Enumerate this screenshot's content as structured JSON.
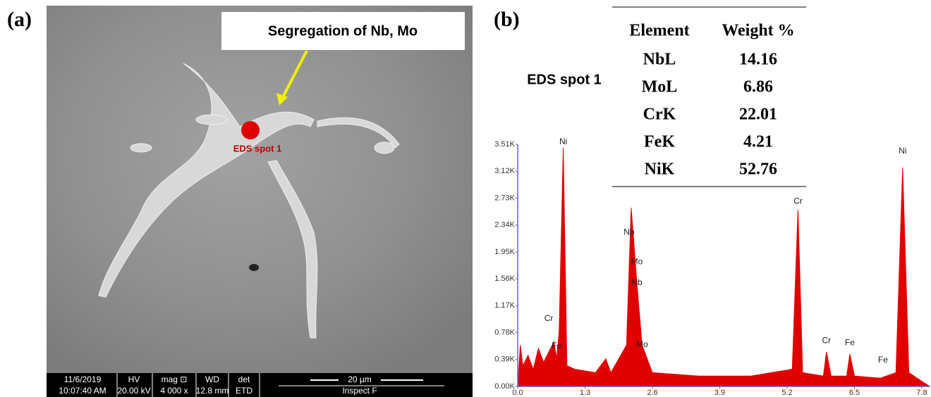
{
  "panel_a": {
    "label": "(a)",
    "annotation": "Segregation of Nb, Mo",
    "spot_label": "EDS spot 1",
    "info_bar": {
      "row1": [
        "11/6/2019",
        "HV",
        "mag ⊡",
        "WD",
        "det",
        "20 µm"
      ],
      "row2": [
        "10:07:40 AM",
        "20.00 kV",
        "4 000 x",
        "12.8 mm",
        "ETD",
        "Inspect F"
      ]
    }
  },
  "panel_b": {
    "label": "(b)",
    "spot_title": "EDS spot 1",
    "table": {
      "headers": [
        "Element",
        "Weight %"
      ],
      "rows": [
        [
          "NbL",
          14.16
        ],
        [
          "MoL",
          6.86
        ],
        [
          "CrK",
          22.01
        ],
        [
          "FeK",
          4.21
        ],
        [
          "NiK",
          52.76
        ]
      ]
    }
  },
  "chart_data": {
    "type": "area",
    "color": "#e00000",
    "x": [
      0.0,
      0.05,
      0.1,
      0.2,
      0.3,
      0.4,
      0.5,
      0.6,
      0.7,
      0.75,
      0.8,
      0.88,
      0.95,
      1.1,
      1.5,
      1.7,
      1.8,
      2.1,
      2.19,
      2.25,
      2.3,
      2.4,
      2.6,
      3.5,
      4.5,
      5.3,
      5.41,
      5.5,
      5.9,
      5.96,
      6.05,
      6.35,
      6.41,
      6.5,
      7.0,
      7.3,
      7.43,
      7.55,
      7.95
    ],
    "values": [
      0,
      600,
      300,
      450,
      250,
      550,
      350,
      500,
      650,
      400,
      800,
      3460,
      300,
      250,
      200,
      400,
      200,
      600,
      2590,
      2000,
      1500,
      600,
      200,
      150,
      150,
      250,
      2560,
      200,
      150,
      500,
      150,
      150,
      470,
      150,
      120,
      200,
      3170,
      200,
      0
    ],
    "xlim": [
      0,
      7.95
    ],
    "ylim": [
      0,
      3510
    ],
    "xticks": [
      {
        "value": 0,
        "label": "0.0"
      },
      1.3,
      2.6,
      3.9,
      5.2,
      6.5,
      7.8
    ],
    "yticks": [
      {
        "value": 0,
        "label": "0.00K"
      },
      {
        "value": 390,
        "label": "0.39K"
      },
      {
        "value": 780,
        "label": "0.78K"
      },
      {
        "value": 1170,
        "label": "1.17K"
      },
      {
        "value": 1560,
        "label": "1.56K"
      },
      {
        "value": 1950,
        "label": "1.95K"
      },
      {
        "value": 2340,
        "label": "2.34K"
      },
      {
        "value": 2730,
        "label": "2.73K"
      },
      {
        "value": 3120,
        "label": "3.12K"
      },
      {
        "value": 3510,
        "label": "3.51K"
      }
    ],
    "peak_labels": [
      {
        "text": "Ni",
        "x": 0.88,
        "y": 3460
      },
      {
        "text": "Cr",
        "x": 0.6,
        "y": 900
      },
      {
        "text": "Fe",
        "x": 0.75,
        "y": 500
      },
      {
        "text": "Nb",
        "x": 2.15,
        "y": 2150
      },
      {
        "text": "Mo",
        "x": 2.3,
        "y": 1720
      },
      {
        "text": "Nb",
        "x": 2.3,
        "y": 1420
      },
      {
        "text": "Mo",
        "x": 2.4,
        "y": 520
      },
      {
        "text": "Cr",
        "x": 5.41,
        "y": 2600
      },
      {
        "text": "Cr",
        "x": 5.96,
        "y": 580
      },
      {
        "text": "Fe",
        "x": 6.41,
        "y": 550
      },
      {
        "text": "Fe",
        "x": 7.05,
        "y": 300
      },
      {
        "text": "Ni",
        "x": 7.43,
        "y": 3330
      }
    ]
  }
}
